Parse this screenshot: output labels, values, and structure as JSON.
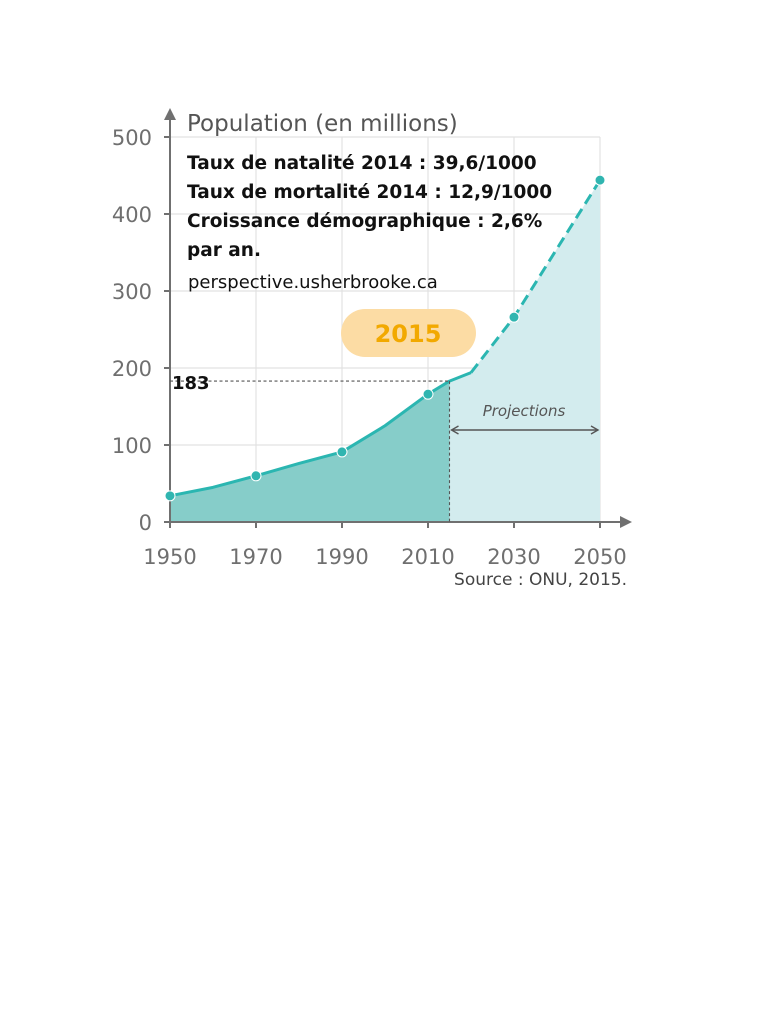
{
  "chart_data": {
    "type": "area",
    "title": "",
    "ylabel": "Population (en millions)",
    "xlabel": "",
    "x_ticks": [
      "1950",
      "1970",
      "1990",
      "2010",
      "2030",
      "2050"
    ],
    "y_ticks": [
      "0",
      "100",
      "200",
      "300",
      "400",
      "500"
    ],
    "xlim": [
      1950,
      2050
    ],
    "ylim": [
      0,
      500
    ],
    "grid": true,
    "series": [
      {
        "values": [
          {
            "x": 1950,
            "y": 34
          },
          {
            "x": 1960,
            "y": 45
          },
          {
            "x": 1970,
            "y": 60
          },
          {
            "x": 1980,
            "y": 76
          },
          {
            "x": 1990,
            "y": 91
          },
          {
            "x": 2000,
            "y": 125
          },
          {
            "x": 2010,
            "y": 166
          },
          {
            "x": 2015,
            "y": 183
          },
          {
            "x": 2020,
            "y": 194
          },
          {
            "x": 2030,
            "y": 266
          },
          {
            "x": 2050,
            "y": 444
          }
        ],
        "markers": [
          1950,
          1970,
          1990,
          2010,
          2030,
          2050
        ],
        "projection_from": 2020
      }
    ],
    "highlight_value": {
      "x": 2015,
      "y": 183,
      "label": "183"
    },
    "highlight_year_label": "2015",
    "projection_label": "Projections",
    "colors": {
      "actual_fill": "#86cdc9",
      "projection_fill": "#d3ecee",
      "line": "#2bb6b1",
      "marker": "#30b5b0",
      "grid": "#e2e2e2",
      "axis": "#707070",
      "badge_fill": "#fcdca4",
      "badge_text": "#f2a900"
    },
    "annotations": [
      "Taux de natalité 2014 : 39,6/1000",
      "Taux de mortalité 2014 : 12,9/1000",
      "Croissance démographique : 2,6%",
      "par an."
    ],
    "website": "perspective.usherbrooke.ca",
    "source": "Source : ONU, 2015."
  }
}
